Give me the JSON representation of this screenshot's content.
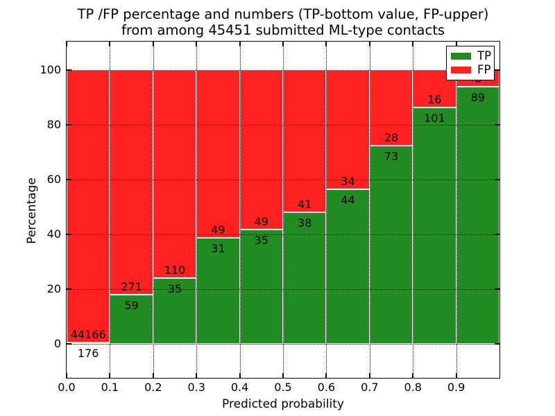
{
  "title": {
    "line1": "TP /FP percentage and numbers (TP-bottom value, FP-upper)",
    "line2": "from among 45451 submitted ML-type contacts"
  },
  "axes": {
    "xlabel": "Predicted probability",
    "ylabel": "Percentage",
    "x_tick_labels": [
      "0.0",
      "0.1",
      "0.2",
      "0.3",
      "0.4",
      "0.5",
      "0.6",
      "0.7",
      "0.8",
      "0.9"
    ],
    "y_tick_labels": [
      "0",
      "20",
      "40",
      "60",
      "80",
      "100"
    ],
    "y_tick_values": [
      0,
      20,
      40,
      60,
      80,
      100
    ],
    "xlim": [
      0.0,
      1.0
    ],
    "ylim": [
      -12,
      110
    ],
    "grid_style": "dotted"
  },
  "legend": {
    "position": "upper right",
    "items": [
      {
        "label": "TP",
        "color": "#228b22"
      },
      {
        "label": "FP",
        "color": "#ff2020"
      }
    ]
  },
  "chart_data": {
    "type": "bar",
    "stacked": true,
    "normalized_to_percent": true,
    "title": "TP /FP percentage and numbers (TP-bottom value, FP-upper) from among 45451 submitted ML-type contacts",
    "xlabel": "Predicted probability",
    "ylabel": "Percentage",
    "bins": [
      "0.0-0.1",
      "0.1-0.2",
      "0.2-0.3",
      "0.3-0.4",
      "0.4-0.5",
      "0.5-0.6",
      "0.6-0.7",
      "0.7-0.8",
      "0.8-0.9",
      "0.9-1.0"
    ],
    "bin_width": 0.1,
    "series": [
      {
        "name": "TP",
        "color": "#228b22",
        "counts": [
          176,
          59,
          35,
          31,
          35,
          38,
          44,
          73,
          101,
          89
        ]
      },
      {
        "name": "FP",
        "color": "#ff2020",
        "counts": [
          44166,
          271,
          110,
          49,
          49,
          41,
          34,
          28,
          16,
          6
        ]
      }
    ],
    "tp_percent": [
      0.4,
      17.9,
      24.1,
      38.8,
      41.7,
      48.1,
      56.4,
      72.3,
      86.3,
      93.7
    ],
    "total_contacts": 45451,
    "ylim": [
      -12,
      110
    ],
    "grid": true,
    "legend_position": "upper right"
  }
}
